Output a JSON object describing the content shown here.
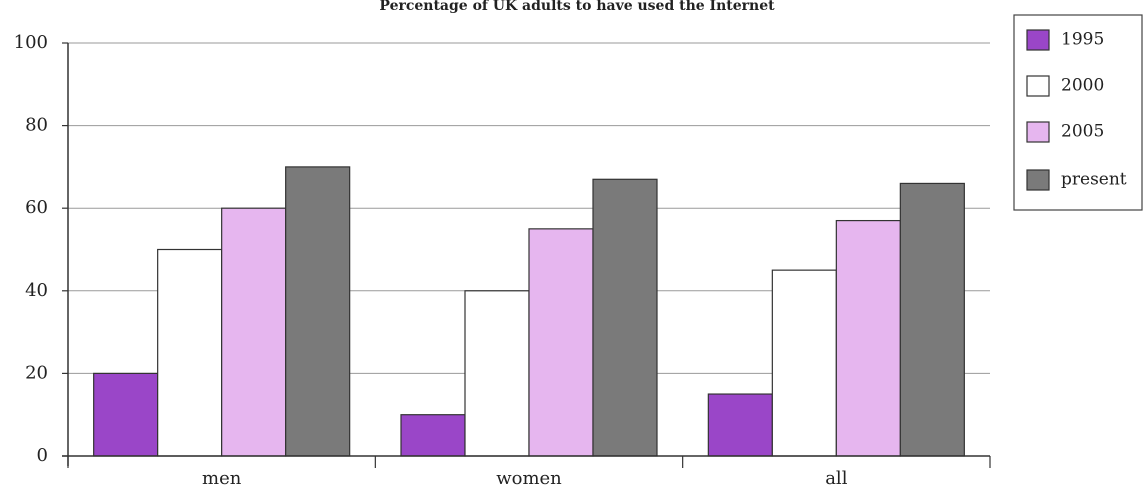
{
  "chart_data": {
    "type": "bar",
    "title": "Percentage of UK adults to have used the Internet",
    "categories": [
      "men",
      "women",
      "all"
    ],
    "series": [
      {
        "name": "1995",
        "values": [
          20,
          10,
          15
        ],
        "color": "#9a46c8"
      },
      {
        "name": "2000",
        "values": [
          50,
          40,
          45
        ],
        "color": "#ffffff"
      },
      {
        "name": "2005",
        "values": [
          60,
          55,
          57
        ],
        "color": "#e6b6ef"
      },
      {
        "name": "present",
        "values": [
          70,
          67,
          66
        ],
        "color": "#7a7a7a"
      }
    ],
    "ylim": [
      0,
      100
    ],
    "yticks": [
      0,
      20,
      40,
      60,
      80,
      100
    ],
    "xlabel": "",
    "ylabel": "",
    "grid": true,
    "legend": "top-right"
  }
}
